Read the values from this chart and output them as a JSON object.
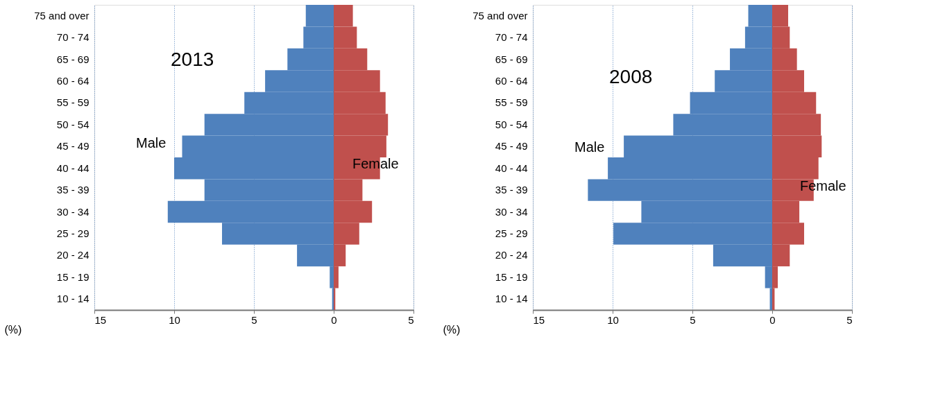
{
  "chart_data": [
    {
      "type": "bar",
      "orientation": "horizontal",
      "title": "2013",
      "xlabel": "(%)",
      "categories": [
        "75 and over",
        "70 - 74",
        "65 - 69",
        "60 - 64",
        "55 - 59",
        "50 - 54",
        "45 - 49",
        "40 - 44",
        "35 - 39",
        "30 - 34",
        "25 - 29",
        "20 - 24",
        "15 - 19",
        "10 - 14"
      ],
      "series": [
        {
          "name": "Male",
          "color": "#4f81bd",
          "values": [
            -1.75,
            -1.9,
            -2.9,
            -4.3,
            -5.6,
            -8.1,
            -9.5,
            -10.0,
            -8.1,
            -10.4,
            -7.0,
            -2.3,
            -0.25,
            -0.1
          ]
        },
        {
          "name": "Female",
          "color": "#c0504d",
          "values": [
            1.2,
            1.45,
            2.1,
            2.9,
            3.25,
            3.4,
            3.3,
            2.9,
            1.8,
            2.4,
            1.6,
            0.75,
            0.3,
            0.1
          ]
        }
      ],
      "xlim": [
        -15,
        5
      ],
      "xticks": [
        {
          "value": -15,
          "label": "15"
        },
        {
          "value": -10,
          "label": "10"
        },
        {
          "value": -5,
          "label": "5"
        },
        0,
        5
      ],
      "grid": "x",
      "line_style": "dotted",
      "stacked": true
    },
    {
      "type": "bar",
      "orientation": "horizontal",
      "title": "2008",
      "xlabel": "(%)",
      "categories": [
        "75 and over",
        "70 - 74",
        "65 - 69",
        "60 - 64",
        "55 - 59",
        "50 - 54",
        "45 - 49",
        "40 - 44",
        "35 - 39",
        "30 - 34",
        "25 - 29",
        "20 - 24",
        "15 - 19",
        "10 - 14"
      ],
      "series": [
        {
          "name": "Male",
          "color": "#4f81bd",
          "values": [
            -1.5,
            -1.7,
            -2.65,
            -3.6,
            -5.15,
            -6.2,
            -9.3,
            -10.3,
            -11.55,
            -8.2,
            -9.95,
            -3.7,
            -0.45,
            -0.15
          ]
        },
        {
          "name": "Female",
          "color": "#c0504d",
          "values": [
            1.0,
            1.1,
            1.55,
            2.0,
            2.75,
            3.05,
            3.1,
            2.9,
            2.6,
            1.7,
            2.0,
            1.1,
            0.35,
            0.15
          ]
        }
      ],
      "xlim": [
        -15,
        5
      ],
      "xticks": [
        {
          "value": -15,
          "label": "15"
        },
        {
          "value": -10,
          "label": "10"
        },
        {
          "value": -5,
          "label": "5"
        },
        0,
        5
      ],
      "grid": "x",
      "line_style": "dotted",
      "stacked": true
    }
  ]
}
